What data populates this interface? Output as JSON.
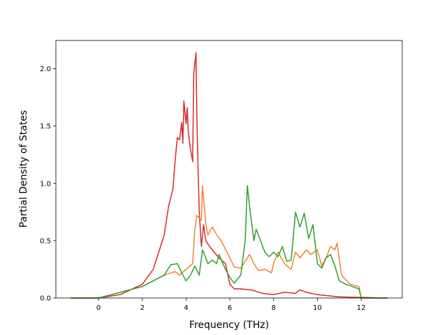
{
  "chart_data": {
    "type": "line",
    "xlabel": "Frequency (THz)",
    "ylabel": "Partial Density of States",
    "xlim": [
      -1.95,
      13.88
    ],
    "ylim": [
      0,
      2.247
    ],
    "xticks": [
      0,
      2,
      4,
      6,
      8,
      10,
      12
    ],
    "yticks": [
      {
        "value": 0,
        "label": "0.0"
      },
      0.5,
      {
        "value": 1,
        "label": "1.0"
      },
      1.5,
      {
        "value": 2,
        "label": "2.0"
      }
    ],
    "series": [
      {
        "color": "#d62728",
        "x": [
          -1.27,
          0,
          1,
          2,
          2.5,
          3,
          3.2,
          3.4,
          3.5,
          3.6,
          3.7,
          3.8,
          3.85,
          3.9,
          4.0,
          4.05,
          4.1,
          4.2,
          4.3,
          4.35,
          4.45,
          4.5,
          4.6,
          4.7,
          4.8,
          4.9,
          5.0,
          5.2,
          5.5,
          5.8,
          6.0,
          6.2,
          6.5,
          7,
          7.5,
          8,
          8.5,
          9,
          9.2,
          9.5,
          10,
          11,
          12,
          13.2
        ],
        "values": [
          0,
          0,
          0.03,
          0.12,
          0.25,
          0.55,
          0.8,
          0.95,
          1.2,
          1.4,
          1.38,
          1.53,
          1.35,
          1.72,
          1.52,
          1.66,
          1.45,
          1.3,
          1.19,
          1.95,
          2.14,
          1.5,
          0.75,
          0.45,
          0.64,
          0.5,
          0.47,
          0.42,
          0.35,
          0.3,
          0.12,
          0.08,
          0.08,
          0.07,
          0.04,
          0.03,
          0.05,
          0.04,
          0.07,
          0.05,
          0.03,
          0.01,
          0.005,
          0
        ]
      },
      {
        "color": "#f08228",
        "x": [
          -1.27,
          0,
          2,
          3,
          3.5,
          3.7,
          4,
          4.3,
          4.4,
          4.5,
          4.7,
          4.75,
          4.9,
          5,
          5.2,
          5.4,
          5.6,
          6,
          6.2,
          6.5,
          6.7,
          6.9,
          7.1,
          7.3,
          7.6,
          7.9,
          8,
          8.2,
          8.5,
          8.8,
          9,
          9.2,
          9.5,
          9.7,
          10,
          10.2,
          10.4,
          10.6,
          10.8,
          10.9,
          11.1,
          11.5,
          11.9,
          12,
          13.2
        ],
        "values": [
          0,
          0,
          0.1,
          0.2,
          0.23,
          0.2,
          0.25,
          0.3,
          0.6,
          0.72,
          0.68,
          0.98,
          0.65,
          0.55,
          0.62,
          0.55,
          0.5,
          0.35,
          0.27,
          0.26,
          0.32,
          0.38,
          0.3,
          0.24,
          0.25,
          0.22,
          0.3,
          0.4,
          0.3,
          0.25,
          0.4,
          0.35,
          0.42,
          0.38,
          0.42,
          0.28,
          0.35,
          0.45,
          0.42,
          0.48,
          0.2,
          0.12,
          0.1,
          0,
          0
        ]
      },
      {
        "color": "#2ca02c",
        "x": [
          -1.27,
          0,
          2,
          3,
          3.3,
          3.6,
          3.8,
          4,
          4.2,
          4.4,
          4.6,
          4.75,
          5,
          5.2,
          5.4,
          5.5,
          5.8,
          6,
          6.2,
          6.5,
          6.7,
          6.8,
          6.9,
          7.1,
          7.2,
          7.4,
          7.6,
          7.8,
          8,
          8.2,
          8.4,
          8.6,
          8.8,
          9,
          9.2,
          9.4,
          9.6,
          9.8,
          10,
          10.2,
          10.4,
          10.6,
          10.8,
          11,
          11.3,
          11.9,
          12,
          13.2
        ],
        "values": [
          0,
          0,
          0.1,
          0.2,
          0.29,
          0.3,
          0.22,
          0.15,
          0.2,
          0.28,
          0.2,
          0.42,
          0.3,
          0.33,
          0.3,
          0.38,
          0.25,
          0.18,
          0.13,
          0.2,
          0.5,
          0.98,
          0.8,
          0.5,
          0.6,
          0.5,
          0.4,
          0.36,
          0.4,
          0.36,
          0.45,
          0.32,
          0.33,
          0.75,
          0.62,
          0.74,
          0.52,
          0.64,
          0.3,
          0.26,
          0.35,
          0.38,
          0.28,
          0.15,
          0.12,
          0.08,
          0,
          0
        ]
      }
    ]
  }
}
